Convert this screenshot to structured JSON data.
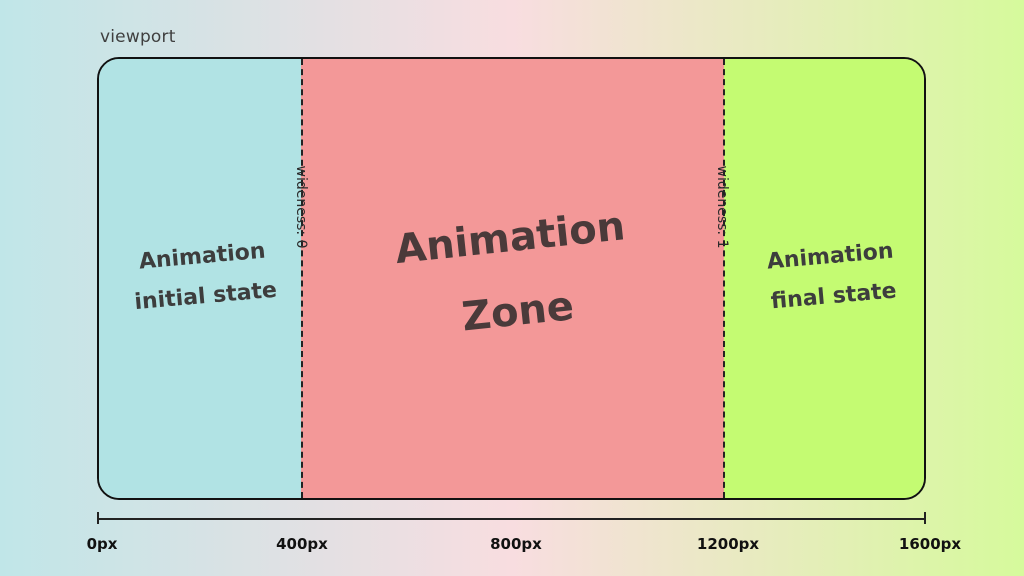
{
  "viewport_label": "viewport",
  "zones": {
    "initial": "Animation initial state",
    "animation": "Animation Zone",
    "final": "Animation final state"
  },
  "dividers": {
    "start": "wideness: 0",
    "end": "wideness: 1"
  },
  "axis": {
    "labels": [
      "0px",
      "400px",
      "800px",
      "1200px",
      "1600px"
    ]
  },
  "colors": {
    "initial": "#b1e3e4",
    "animation": "#f39898",
    "final": "#c4fb72"
  }
}
